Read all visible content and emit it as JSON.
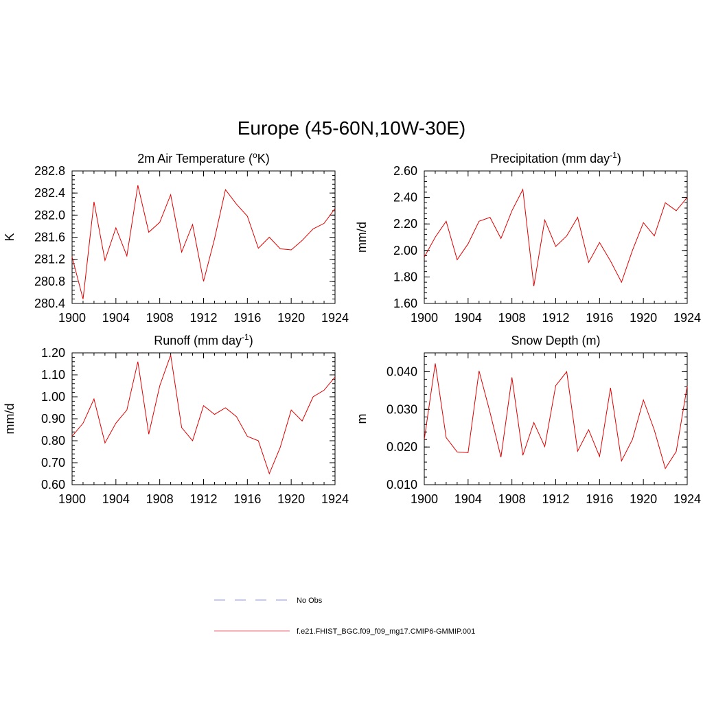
{
  "main_title": "Europe (45-60N,10W-30E)",
  "chart_data": [
    {
      "type": "line",
      "title": "2m Air Temperature (",
      "title_sup": "o",
      "title_suffix": "K)",
      "ylabel": "K",
      "xlim": [
        1900,
        1924
      ],
      "ylim": [
        280.4,
        282.8
      ],
      "xticks": [
        "1900",
        "1904",
        "1908",
        "1912",
        "1916",
        "1920",
        "1924"
      ],
      "yticks": [
        "280.4",
        "280.8",
        "281.2",
        "281.6",
        "282.0",
        "282.4",
        "282.8"
      ],
      "x": [
        1900,
        1901,
        1902,
        1903,
        1904,
        1905,
        1906,
        1907,
        1908,
        1909,
        1910,
        1911,
        1912,
        1913,
        1914,
        1915,
        1916,
        1917,
        1918,
        1919,
        1920,
        1921,
        1922,
        1923,
        1924
      ],
      "values": [
        281.24,
        280.48,
        282.24,
        281.18,
        281.77,
        281.26,
        282.54,
        281.69,
        281.87,
        282.37,
        281.33,
        281.83,
        280.8,
        281.57,
        282.46,
        282.2,
        281.98,
        281.4,
        281.6,
        281.39,
        281.37,
        281.54,
        281.75,
        281.85,
        282.12
      ]
    },
    {
      "type": "line",
      "title": "Precipitation (mm day",
      "title_sup": "-1",
      "title_suffix": ")",
      "ylabel": "mm/d",
      "xlim": [
        1900,
        1924
      ],
      "ylim": [
        1.6,
        2.6
      ],
      "xticks": [
        "1900",
        "1904",
        "1908",
        "1912",
        "1916",
        "1920",
        "1924"
      ],
      "yticks": [
        "1.60",
        "1.80",
        "2.00",
        "2.20",
        "2.40",
        "2.60"
      ],
      "x": [
        1900,
        1901,
        1902,
        1903,
        1904,
        1905,
        1906,
        1907,
        1908,
        1909,
        1910,
        1911,
        1912,
        1913,
        1914,
        1915,
        1916,
        1917,
        1918,
        1919,
        1920,
        1921,
        1922,
        1923,
        1924
      ],
      "values": [
        1.95,
        2.1,
        2.22,
        1.93,
        2.05,
        2.22,
        2.25,
        2.09,
        2.3,
        2.46,
        1.73,
        2.23,
        2.03,
        2.11,
        2.25,
        1.91,
        2.06,
        1.92,
        1.76,
        2.0,
        2.21,
        2.11,
        2.36,
        2.3,
        2.4
      ]
    },
    {
      "type": "line",
      "title": "Runoff (mm day",
      "title_sup": "-1",
      "title_suffix": ")",
      "ylabel": "mm/d",
      "xlim": [
        1900,
        1924
      ],
      "ylim": [
        0.6,
        1.2
      ],
      "xticks": [
        "1900",
        "1904",
        "1908",
        "1912",
        "1916",
        "1920",
        "1924"
      ],
      "yticks": [
        "0.60",
        "0.70",
        "0.80",
        "0.90",
        "1.00",
        "1.10",
        "1.20"
      ],
      "x": [
        1900,
        1901,
        1902,
        1903,
        1904,
        1905,
        1906,
        1907,
        1908,
        1909,
        1910,
        1911,
        1912,
        1913,
        1914,
        1915,
        1916,
        1917,
        1918,
        1919,
        1920,
        1921,
        1922,
        1923,
        1924
      ],
      "values": [
        0.82,
        0.88,
        0.99,
        0.79,
        0.88,
        0.94,
        1.16,
        0.83,
        1.05,
        1.19,
        0.86,
        0.8,
        0.96,
        0.92,
        0.95,
        0.91,
        0.82,
        0.8,
        0.65,
        0.77,
        0.94,
        0.89,
        1.0,
        1.03,
        1.09
      ]
    },
    {
      "type": "line",
      "title": "Snow Depth (m)",
      "title_sup": "",
      "title_suffix": "",
      "ylabel": "m",
      "xlim": [
        1900,
        1924
      ],
      "ylim": [
        0.01,
        0.045
      ],
      "xticks": [
        "1900",
        "1904",
        "1908",
        "1912",
        "1916",
        "1920",
        "1924"
      ],
      "yticks": [
        "0.010",
        "0.020",
        "0.030",
        "0.040"
      ],
      "x": [
        1900,
        1901,
        1902,
        1903,
        1904,
        1905,
        1906,
        1907,
        1908,
        1909,
        1910,
        1911,
        1912,
        1913,
        1914,
        1915,
        1916,
        1917,
        1918,
        1919,
        1920,
        1921,
        1922,
        1923,
        1924
      ],
      "values": [
        0.022,
        0.0422,
        0.0225,
        0.0187,
        0.0185,
        0.0402,
        0.0292,
        0.0173,
        0.0385,
        0.0178,
        0.0265,
        0.0201,
        0.0363,
        0.04,
        0.0189,
        0.0246,
        0.0175,
        0.0357,
        0.0163,
        0.022,
        0.0325,
        0.0245,
        0.0143,
        0.0188,
        0.0362
      ]
    }
  ],
  "legend": {
    "items": [
      {
        "label": "No Obs",
        "color": "#9090f0",
        "dash": true
      },
      {
        "label": "f.e21.FHIST_BGC.f09_f09_mg17.CMIP6-GMMIP.001",
        "color": "#f06070",
        "dash": false
      }
    ]
  },
  "colors": {
    "series": "#e00000",
    "axis": "#000000"
  }
}
